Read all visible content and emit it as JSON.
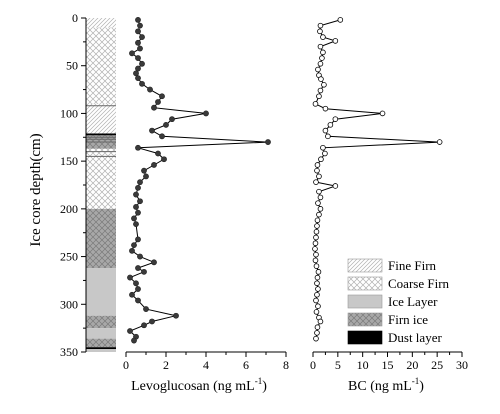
{
  "chart_data": {
    "type": "line",
    "y_axis": {
      "label": "Ice core depth(cm)",
      "range": [
        0,
        350
      ],
      "ticks": [
        0,
        50,
        100,
        150,
        200,
        250,
        300,
        350
      ],
      "reversed": true
    },
    "panels": [
      {
        "name": "levoglucosan",
        "xlabel": "Levoglucosan (ng mL",
        "xlabel_sup": "-1",
        "xlabel_end": ")",
        "x_range": [
          0,
          8
        ],
        "x_ticks": [
          0,
          2,
          4,
          6,
          8
        ],
        "marker": "filled-circle",
        "points": [
          {
            "x": 0.6,
            "depth": 2
          },
          {
            "x": 0.7,
            "depth": 8
          },
          {
            "x": 0.6,
            "depth": 14
          },
          {
            "x": 0.8,
            "depth": 20
          },
          {
            "x": 0.6,
            "depth": 26
          },
          {
            "x": 0.7,
            "depth": 32
          },
          {
            "x": 0.3,
            "depth": 37
          },
          {
            "x": 0.6,
            "depth": 42
          },
          {
            "x": 0.8,
            "depth": 48
          },
          {
            "x": 0.6,
            "depth": 53
          },
          {
            "x": 0.5,
            "depth": 58
          },
          {
            "x": 0.6,
            "depth": 63
          },
          {
            "x": 0.8,
            "depth": 69
          },
          {
            "x": 1.2,
            "depth": 75
          },
          {
            "x": 1.8,
            "depth": 82
          },
          {
            "x": 1.6,
            "depth": 88
          },
          {
            "x": 1.4,
            "depth": 94
          },
          {
            "x": 4.0,
            "depth": 100
          },
          {
            "x": 2.3,
            "depth": 106
          },
          {
            "x": 2.0,
            "depth": 112
          },
          {
            "x": 1.3,
            "depth": 118
          },
          {
            "x": 1.8,
            "depth": 124
          },
          {
            "x": 7.1,
            "depth": 130
          },
          {
            "x": 0.6,
            "depth": 136
          },
          {
            "x": 1.6,
            "depth": 142
          },
          {
            "x": 1.9,
            "depth": 148
          },
          {
            "x": 1.4,
            "depth": 154
          },
          {
            "x": 0.9,
            "depth": 160
          },
          {
            "x": 1.0,
            "depth": 166
          },
          {
            "x": 0.7,
            "depth": 172
          },
          {
            "x": 0.6,
            "depth": 178
          },
          {
            "x": 0.5,
            "depth": 185
          },
          {
            "x": 0.7,
            "depth": 192
          },
          {
            "x": 0.5,
            "depth": 198
          },
          {
            "x": 0.6,
            "depth": 204
          },
          {
            "x": 0.4,
            "depth": 210
          },
          {
            "x": 0.5,
            "depth": 216
          },
          {
            "x": 0.6,
            "depth": 232
          },
          {
            "x": 0.4,
            "depth": 238
          },
          {
            "x": 0.3,
            "depth": 244
          },
          {
            "x": 0.7,
            "depth": 250
          },
          {
            "x": 1.4,
            "depth": 256
          },
          {
            "x": 0.6,
            "depth": 262
          },
          {
            "x": 0.9,
            "depth": 266
          },
          {
            "x": 0.2,
            "depth": 272
          },
          {
            "x": 0.5,
            "depth": 278
          },
          {
            "x": 0.6,
            "depth": 284
          },
          {
            "x": 0.3,
            "depth": 290
          },
          {
            "x": 0.6,
            "depth": 296
          },
          {
            "x": 1.0,
            "depth": 305
          },
          {
            "x": 2.5,
            "depth": 312
          },
          {
            "x": 1.3,
            "depth": 318
          },
          {
            "x": 0.9,
            "depth": 322
          },
          {
            "x": 0.2,
            "depth": 328
          },
          {
            "x": 0.5,
            "depth": 334
          },
          {
            "x": 0.4,
            "depth": 338
          }
        ]
      },
      {
        "name": "bc",
        "xlabel": "BC (ng mL",
        "xlabel_sup": "-1",
        "xlabel_end": ")",
        "x_range": [
          0,
          30
        ],
        "x_ticks": [
          0,
          5,
          10,
          15,
          20,
          25,
          30
        ],
        "marker": "open-circle",
        "points": [
          {
            "x": 5.5,
            "depth": 2
          },
          {
            "x": 1.5,
            "depth": 8
          },
          {
            "x": 1.4,
            "depth": 14
          },
          {
            "x": 2.0,
            "depth": 20
          },
          {
            "x": 4.5,
            "depth": 24
          },
          {
            "x": 1.5,
            "depth": 30
          },
          {
            "x": 2.0,
            "depth": 36
          },
          {
            "x": 1.8,
            "depth": 42
          },
          {
            "x": 1.5,
            "depth": 48
          },
          {
            "x": 1.0,
            "depth": 54
          },
          {
            "x": 1.2,
            "depth": 60
          },
          {
            "x": 1.6,
            "depth": 64
          },
          {
            "x": 2.2,
            "depth": 70
          },
          {
            "x": 1.5,
            "depth": 76
          },
          {
            "x": 1.2,
            "depth": 82
          },
          {
            "x": 0.5,
            "depth": 90
          },
          {
            "x": 2.5,
            "depth": 95
          },
          {
            "x": 14.0,
            "depth": 100
          },
          {
            "x": 4.5,
            "depth": 106
          },
          {
            "x": 3.5,
            "depth": 112
          },
          {
            "x": 2.5,
            "depth": 118
          },
          {
            "x": 3.0,
            "depth": 124
          },
          {
            "x": 25.5,
            "depth": 130
          },
          {
            "x": 2.0,
            "depth": 136
          },
          {
            "x": 2.4,
            "depth": 142
          },
          {
            "x": 1.6,
            "depth": 148
          },
          {
            "x": 0.9,
            "depth": 154
          },
          {
            "x": 0.8,
            "depth": 160
          },
          {
            "x": 1.2,
            "depth": 166
          },
          {
            "x": 0.6,
            "depth": 172
          },
          {
            "x": 4.5,
            "depth": 176
          },
          {
            "x": 1.2,
            "depth": 182
          },
          {
            "x": 1.5,
            "depth": 188
          },
          {
            "x": 1.0,
            "depth": 194
          },
          {
            "x": 1.5,
            "depth": 200
          },
          {
            "x": 1.2,
            "depth": 206
          },
          {
            "x": 0.9,
            "depth": 212
          },
          {
            "x": 0.8,
            "depth": 218
          },
          {
            "x": 0.7,
            "depth": 224
          },
          {
            "x": 0.6,
            "depth": 230
          },
          {
            "x": 0.5,
            "depth": 236
          },
          {
            "x": 0.4,
            "depth": 242
          },
          {
            "x": 0.6,
            "depth": 248
          },
          {
            "x": 0.5,
            "depth": 254
          },
          {
            "x": 0.7,
            "depth": 260
          },
          {
            "x": 1.1,
            "depth": 266
          },
          {
            "x": 0.9,
            "depth": 272
          },
          {
            "x": 0.8,
            "depth": 278
          },
          {
            "x": 1.0,
            "depth": 284
          },
          {
            "x": 0.8,
            "depth": 290
          },
          {
            "x": 0.6,
            "depth": 296
          },
          {
            "x": 1.0,
            "depth": 302
          },
          {
            "x": 0.7,
            "depth": 308
          },
          {
            "x": 1.2,
            "depth": 314
          },
          {
            "x": 1.5,
            "depth": 318
          },
          {
            "x": 0.9,
            "depth": 324
          },
          {
            "x": 0.8,
            "depth": 330
          },
          {
            "x": 0.6,
            "depth": 336
          }
        ]
      }
    ],
    "stratigraphy": {
      "layers": [
        {
          "type": "fine_firn",
          "from": 0,
          "to": 10
        },
        {
          "type": "coarse_firn",
          "from": 10,
          "to": 90
        },
        {
          "type": "fine_firn",
          "from": 90,
          "to": 121
        },
        {
          "type": "dust_layer",
          "from": 121,
          "to": 123
        },
        {
          "type": "firn_ice",
          "from": 123,
          "to": 137
        },
        {
          "type": "coarse_firn",
          "from": 137,
          "to": 200
        },
        {
          "type": "firn_ice",
          "from": 200,
          "to": 262
        },
        {
          "type": "ice_layer",
          "from": 262,
          "to": 312
        },
        {
          "type": "firn_ice",
          "from": 312,
          "to": 325
        },
        {
          "type": "ice_layer",
          "from": 325,
          "to": 336
        },
        {
          "type": "firn_ice",
          "from": 336,
          "to": 345
        },
        {
          "type": "dust_layer",
          "from": 345,
          "to": 347
        },
        {
          "type": "ice_layer",
          "from": 347,
          "to": 350
        }
      ],
      "thin_lines": [
        92,
        125,
        127,
        130,
        140,
        145
      ]
    },
    "legend": {
      "placement": "bottom-right",
      "items": [
        {
          "type": "fine_firn",
          "label": "Fine Firn"
        },
        {
          "type": "coarse_firn",
          "label": "Coarse Firn"
        },
        {
          "type": "ice_layer",
          "label": "Ice Layer"
        },
        {
          "type": "firn_ice",
          "label": "Firn ice"
        },
        {
          "type": "dust_layer",
          "label": "Dust layer"
        }
      ]
    },
    "colors": {
      "ice_layer": "#c8c8c8",
      "firn_ice": "#a8a8a8",
      "dust_layer": "#000000",
      "hatch": "#b0b0b0"
    }
  }
}
